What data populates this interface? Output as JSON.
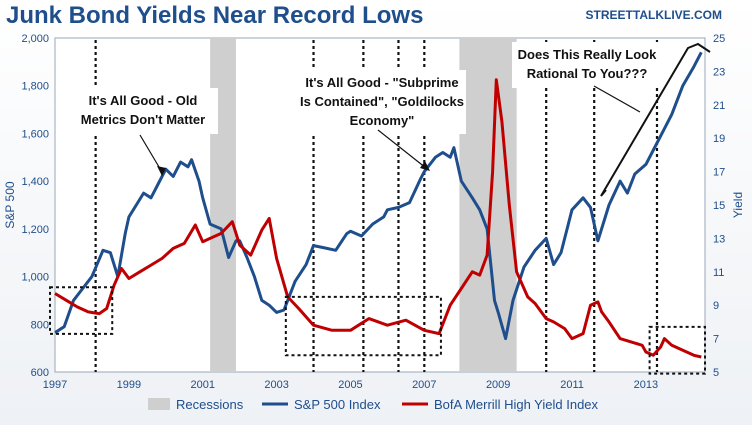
{
  "header": {
    "title": "Junk Bond Yields Near Record Lows",
    "site": "STREETTALKLIVE.COM"
  },
  "chart_data": {
    "type": "line",
    "xlim": [
      1997.0,
      2014.6
    ],
    "x_ticks": [
      "1997",
      "1999",
      "2001",
      "2003",
      "2005",
      "2007",
      "2009",
      "2011",
      "2013"
    ],
    "y_left": {
      "label": "S&P 500",
      "range": [
        600,
        2000
      ],
      "ticks": [
        "600",
        "800",
        "1,000",
        "1,200",
        "1,400",
        "1,600",
        "1,800",
        "2,000"
      ]
    },
    "y_right": {
      "label": "Yield",
      "range": [
        5,
        25
      ],
      "ticks": [
        "5",
        "7",
        "9",
        "11",
        "13",
        "15",
        "17",
        "19",
        "21",
        "23",
        "25"
      ]
    },
    "recessions": [
      [
        2001.2,
        2001.9
      ],
      [
        2007.95,
        2009.5
      ]
    ],
    "vertical_markers": [
      1998.1,
      2004.0,
      2005.35,
      2006.3,
      2007.0,
      2010.3,
      2011.6,
      2013.3
    ],
    "series": [
      {
        "name": "S&P 500 Index",
        "axis": "left",
        "color": "#1f4e8c",
        "x": [
          1997.0,
          1997.25,
          1997.5,
          1997.75,
          1998.0,
          1998.3,
          1998.5,
          1998.7,
          1998.9,
          1999.0,
          1999.2,
          1999.4,
          1999.6,
          1999.8,
          2000.0,
          2000.2,
          2000.4,
          2000.6,
          2000.7,
          2000.9,
          2001.0,
          2001.2,
          2001.5,
          2001.7,
          2001.9,
          2002.0,
          2002.2,
          2002.4,
          2002.6,
          2002.8,
          2003.0,
          2003.2,
          2003.5,
          2003.8,
          2004.0,
          2004.3,
          2004.6,
          2004.9,
          2005.0,
          2005.3,
          2005.6,
          2005.9,
          2006.0,
          2006.3,
          2006.6,
          2006.9,
          2007.0,
          2007.3,
          2007.5,
          2007.7,
          2007.8,
          2008.0,
          2008.3,
          2008.5,
          2008.7,
          2008.9,
          2009.0,
          2009.2,
          2009.4,
          2009.7,
          2010.0,
          2010.3,
          2010.5,
          2010.7,
          2011.0,
          2011.3,
          2011.5,
          2011.7,
          2012.0,
          2012.3,
          2012.5,
          2012.7,
          2013.0,
          2013.3,
          2013.5,
          2013.7,
          2014.0,
          2014.3,
          2014.5
        ],
        "y": [
          765,
          790,
          900,
          950,
          1000,
          1110,
          1100,
          1000,
          1180,
          1250,
          1300,
          1350,
          1330,
          1390,
          1450,
          1420,
          1480,
          1460,
          1490,
          1400,
          1330,
          1220,
          1200,
          1080,
          1150,
          1150,
          1080,
          1000,
          900,
          880,
          850,
          860,
          980,
          1050,
          1130,
          1120,
          1110,
          1180,
          1190,
          1170,
          1220,
          1250,
          1280,
          1290,
          1310,
          1410,
          1440,
          1500,
          1520,
          1500,
          1540,
          1400,
          1330,
          1280,
          1200,
          900,
          850,
          740,
          900,
          1040,
          1110,
          1160,
          1050,
          1100,
          1280,
          1330,
          1290,
          1150,
          1300,
          1400,
          1350,
          1430,
          1470,
          1560,
          1620,
          1680,
          1800,
          1880,
          1940
        ]
      },
      {
        "name": "BofA Merrill High Yield Index",
        "axis": "right",
        "color": "#c00000",
        "x": [
          1997.0,
          1997.3,
          1997.6,
          1997.9,
          1998.2,
          1998.4,
          1998.6,
          1998.8,
          1999.0,
          1999.3,
          1999.6,
          1999.9,
          2000.2,
          2000.5,
          2000.8,
          2001.0,
          2001.2,
          2001.5,
          2001.8,
          2002.0,
          2002.3,
          2002.6,
          2002.8,
          2003.0,
          2003.3,
          2003.6,
          2004.0,
          2004.5,
          2005.0,
          2005.5,
          2006.0,
          2006.5,
          2007.0,
          2007.4,
          2007.7,
          2008.0,
          2008.3,
          2008.5,
          2008.7,
          2008.85,
          2008.95,
          2009.1,
          2009.3,
          2009.5,
          2009.8,
          2010.0,
          2010.3,
          2010.5,
          2010.8,
          2011.0,
          2011.3,
          2011.5,
          2011.7,
          2011.8,
          2012.0,
          2012.3,
          2012.6,
          2012.9,
          2013.0,
          2013.2,
          2013.4,
          2013.5,
          2013.7,
          2014.0,
          2014.3,
          2014.5
        ],
        "y": [
          9.7,
          9.3,
          8.9,
          8.6,
          8.5,
          8.8,
          10.2,
          11.2,
          10.6,
          11.0,
          11.4,
          11.8,
          12.4,
          12.7,
          13.8,
          12.8,
          13.0,
          13.3,
          14.0,
          12.6,
          12.0,
          13.5,
          14.2,
          11.8,
          9.5,
          8.8,
          7.8,
          7.5,
          7.5,
          8.2,
          7.8,
          8.1,
          7.5,
          7.3,
          9.0,
          10.0,
          11.0,
          10.8,
          12.0,
          17.0,
          22.5,
          20.0,
          15.0,
          11.0,
          9.5,
          9.1,
          8.2,
          8.0,
          7.6,
          7.0,
          7.3,
          9.0,
          9.2,
          8.6,
          8.0,
          7.0,
          6.8,
          6.6,
          6.2,
          6.0,
          6.5,
          7.0,
          6.6,
          6.3,
          6.0,
          5.9
        ]
      }
    ],
    "annotations": [
      {
        "id": "a1",
        "lines": [
          "It's All Good - Old",
          "Metrics Don't Matter"
        ]
      },
      {
        "id": "a2",
        "lines": [
          "It's All Good - \"Subprime",
          "Is Contained\", \"Goldilocks",
          "Economy\""
        ]
      },
      {
        "id": "a3",
        "lines": [
          "Does This Really Look",
          "Rational To You???"
        ]
      }
    ],
    "legend": [
      {
        "label": "Recessions",
        "kind": "band",
        "color": "#cfcfcf"
      },
      {
        "label": "S&P 500 Index",
        "kind": "line",
        "color": "#1f4e8c"
      },
      {
        "label": "BofA Merrill High Yield Index",
        "kind": "line",
        "color": "#c00000"
      }
    ],
    "legend_position": "bottom"
  }
}
